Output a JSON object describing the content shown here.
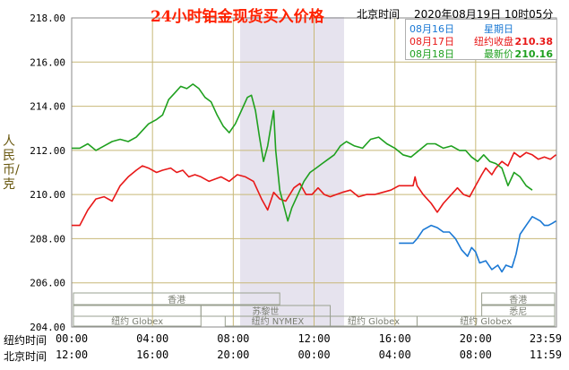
{
  "title": "24小时铂金现货买入价格",
  "location": "北京时间",
  "timestamp": "2020年08月19日 10时05分",
  "y_axis_label": "人民币/克",
  "legend": [
    {
      "date": "08月16日",
      "label": "星期日",
      "value": "",
      "color": "#1a78d4"
    },
    {
      "date": "08月17日",
      "label": "纽约收盘",
      "value": "210.38",
      "color": "#e81818"
    },
    {
      "date": "08月18日",
      "label": "最新价",
      "value": "210.16",
      "color": "#1fa01f"
    }
  ],
  "x_rows": [
    {
      "label": "纽约时间",
      "ticks": [
        "00:00",
        "04:00",
        "08:00",
        "12:00",
        "16:00",
        "20:00",
        "23:59"
      ]
    },
    {
      "label": "北京时间",
      "ticks": [
        "12:00",
        "16:00",
        "20:00",
        "00:00",
        "04:00",
        "08:00",
        "11:59"
      ]
    }
  ],
  "market_labels": [
    "香港",
    "苏黎世",
    "纽约 Globex",
    "纽约 NYMEX",
    "纽约 Globex",
    "香港",
    "悉尼",
    "纽约 Globex"
  ],
  "colors": {
    "background": "#ffffff",
    "grid": "#c8b878",
    "frame": "#888888",
    "nymex_shade": "#e6e3ee",
    "axis_text": "#000000"
  },
  "chart_data": {
    "type": "line",
    "title": "24小时铂金现货买入价格",
    "ylabel": "人民币/克",
    "ylim": [
      204,
      218
    ],
    "yticks": [
      "204.00",
      "206.00",
      "208.00",
      "210.00",
      "212.00",
      "214.00",
      "216.00",
      "218.00"
    ],
    "x_unit": "hours (纽约时间 00:00 – 23:59)",
    "xlim": [
      0,
      24
    ],
    "grid": true,
    "legend_position": "top-right",
    "series": [
      {
        "name": "08月16日",
        "color": "#1a78d4",
        "points": [
          [
            16.2,
            207.8
          ],
          [
            16.9,
            207.8
          ],
          [
            17.1,
            208.0
          ],
          [
            17.4,
            208.4
          ],
          [
            17.8,
            208.6
          ],
          [
            18.1,
            208.5
          ],
          [
            18.4,
            208.3
          ],
          [
            18.7,
            208.3
          ],
          [
            19.0,
            208.0
          ],
          [
            19.3,
            207.5
          ],
          [
            19.6,
            207.2
          ],
          [
            19.8,
            207.6
          ],
          [
            20.0,
            207.4
          ],
          [
            20.2,
            206.9
          ],
          [
            20.5,
            207.0
          ],
          [
            20.8,
            206.6
          ],
          [
            21.1,
            206.8
          ],
          [
            21.3,
            206.5
          ],
          [
            21.5,
            206.8
          ],
          [
            21.8,
            206.7
          ],
          [
            22.0,
            207.3
          ],
          [
            22.2,
            208.2
          ],
          [
            22.5,
            208.6
          ],
          [
            22.8,
            209.0
          ],
          [
            23.0,
            208.9
          ],
          [
            23.2,
            208.8
          ],
          [
            23.4,
            208.6
          ],
          [
            23.6,
            208.6
          ],
          [
            23.8,
            208.7
          ],
          [
            23.98,
            208.8
          ]
        ]
      },
      {
        "name": "08月17日",
        "color": "#e81818",
        "points": [
          [
            0,
            208.6
          ],
          [
            0.4,
            208.6
          ],
          [
            0.8,
            209.3
          ],
          [
            1.2,
            209.8
          ],
          [
            1.6,
            209.9
          ],
          [
            2.0,
            209.7
          ],
          [
            2.4,
            210.4
          ],
          [
            2.8,
            210.8
          ],
          [
            3.2,
            211.1
          ],
          [
            3.5,
            211.3
          ],
          [
            3.8,
            211.2
          ],
          [
            4.2,
            211.0
          ],
          [
            4.5,
            211.1
          ],
          [
            4.9,
            211.2
          ],
          [
            5.2,
            211.0
          ],
          [
            5.5,
            211.1
          ],
          [
            5.8,
            210.8
          ],
          [
            6.1,
            210.9
          ],
          [
            6.4,
            210.8
          ],
          [
            6.8,
            210.6
          ],
          [
            7.1,
            210.7
          ],
          [
            7.4,
            210.8
          ],
          [
            7.8,
            210.6
          ],
          [
            8.2,
            210.9
          ],
          [
            8.6,
            210.8
          ],
          [
            9.0,
            210.6
          ],
          [
            9.4,
            209.8
          ],
          [
            9.7,
            209.3
          ],
          [
            10.0,
            210.1
          ],
          [
            10.3,
            209.8
          ],
          [
            10.6,
            209.7
          ],
          [
            11.0,
            210.3
          ],
          [
            11.3,
            210.5
          ],
          [
            11.6,
            210.0
          ],
          [
            11.9,
            210.0
          ],
          [
            12.2,
            210.3
          ],
          [
            12.5,
            210.0
          ],
          [
            12.8,
            209.9
          ],
          [
            13.1,
            210.0
          ],
          [
            13.4,
            210.1
          ],
          [
            13.8,
            210.2
          ],
          [
            14.2,
            209.9
          ],
          [
            14.6,
            210.0
          ],
          [
            15.0,
            210.0
          ],
          [
            15.4,
            210.1
          ],
          [
            15.8,
            210.2
          ],
          [
            16.2,
            210.4
          ],
          [
            16.6,
            210.4
          ],
          [
            16.9,
            210.4
          ],
          [
            17.0,
            210.8
          ],
          [
            17.1,
            210.4
          ],
          [
            17.4,
            210.0
          ],
          [
            17.8,
            209.6
          ],
          [
            18.1,
            209.2
          ],
          [
            18.4,
            209.6
          ],
          [
            18.8,
            210.0
          ],
          [
            19.1,
            210.3
          ],
          [
            19.4,
            210.0
          ],
          [
            19.7,
            209.9
          ],
          [
            20.0,
            210.4
          ],
          [
            20.3,
            210.9
          ],
          [
            20.5,
            211.2
          ],
          [
            20.8,
            210.9
          ],
          [
            21.0,
            211.2
          ],
          [
            21.3,
            211.5
          ],
          [
            21.6,
            211.3
          ],
          [
            21.9,
            211.9
          ],
          [
            22.2,
            211.7
          ],
          [
            22.5,
            211.9
          ],
          [
            22.8,
            211.8
          ],
          [
            23.1,
            211.6
          ],
          [
            23.4,
            211.7
          ],
          [
            23.7,
            211.6
          ],
          [
            23.98,
            211.8
          ]
        ]
      },
      {
        "name": "08月18日",
        "color": "#1fa01f",
        "points": [
          [
            0,
            212.1
          ],
          [
            0.4,
            212.1
          ],
          [
            0.8,
            212.3
          ],
          [
            1.2,
            212.0
          ],
          [
            1.6,
            212.2
          ],
          [
            2.0,
            212.4
          ],
          [
            2.4,
            212.5
          ],
          [
            2.8,
            212.4
          ],
          [
            3.2,
            212.6
          ],
          [
            3.5,
            212.9
          ],
          [
            3.8,
            213.2
          ],
          [
            4.2,
            213.4
          ],
          [
            4.5,
            213.6
          ],
          [
            4.8,
            214.3
          ],
          [
            5.1,
            214.6
          ],
          [
            5.4,
            214.9
          ],
          [
            5.7,
            214.8
          ],
          [
            6.0,
            215.0
          ],
          [
            6.3,
            214.8
          ],
          [
            6.6,
            214.4
          ],
          [
            6.9,
            214.2
          ],
          [
            7.2,
            213.6
          ],
          [
            7.5,
            213.1
          ],
          [
            7.8,
            212.8
          ],
          [
            8.1,
            213.2
          ],
          [
            8.4,
            213.8
          ],
          [
            8.7,
            214.4
          ],
          [
            8.9,
            214.5
          ],
          [
            9.1,
            213.8
          ],
          [
            9.3,
            212.6
          ],
          [
            9.5,
            211.5
          ],
          [
            9.7,
            212.2
          ],
          [
            9.9,
            213.3
          ],
          [
            10.0,
            213.8
          ],
          [
            10.1,
            212.0
          ],
          [
            10.3,
            210.2
          ],
          [
            10.5,
            209.5
          ],
          [
            10.7,
            208.8
          ],
          [
            10.9,
            209.4
          ],
          [
            11.1,
            209.8
          ],
          [
            11.3,
            210.2
          ],
          [
            11.5,
            210.6
          ],
          [
            11.8,
            211.0
          ],
          [
            12.1,
            211.2
          ],
          [
            12.4,
            211.4
          ],
          [
            12.7,
            211.6
          ],
          [
            13.0,
            211.8
          ],
          [
            13.3,
            212.2
          ],
          [
            13.6,
            212.4
          ],
          [
            14.0,
            212.2
          ],
          [
            14.4,
            212.1
          ],
          [
            14.8,
            212.5
          ],
          [
            15.2,
            212.6
          ],
          [
            15.6,
            212.3
          ],
          [
            16.0,
            212.1
          ],
          [
            16.4,
            211.8
          ],
          [
            16.8,
            211.7
          ],
          [
            17.2,
            212.0
          ],
          [
            17.6,
            212.3
          ],
          [
            18.0,
            212.3
          ],
          [
            18.4,
            212.1
          ],
          [
            18.8,
            212.2
          ],
          [
            19.2,
            212.0
          ],
          [
            19.5,
            212.0
          ],
          [
            19.8,
            211.7
          ],
          [
            20.1,
            211.5
          ],
          [
            20.4,
            211.8
          ],
          [
            20.7,
            211.5
          ],
          [
            21.0,
            211.4
          ],
          [
            21.3,
            211.2
          ],
          [
            21.6,
            210.4
          ],
          [
            21.9,
            211.0
          ],
          [
            22.2,
            210.8
          ],
          [
            22.5,
            210.4
          ],
          [
            22.8,
            210.2
          ]
        ]
      }
    ]
  }
}
